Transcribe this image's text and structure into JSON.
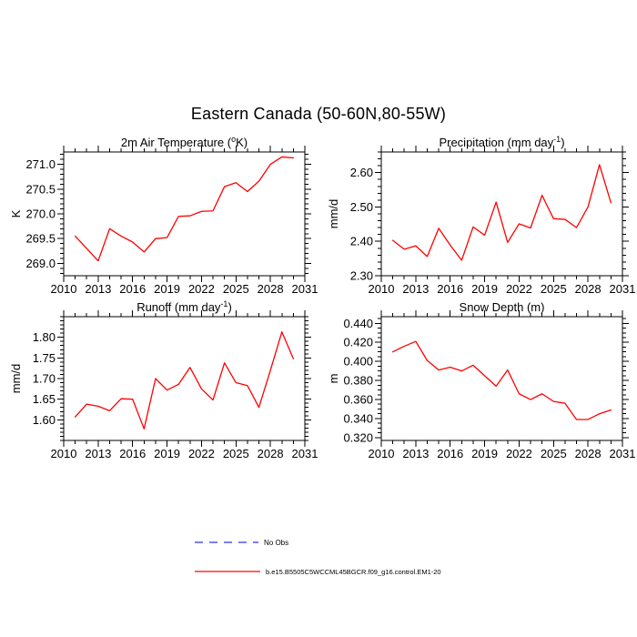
{
  "page": {
    "title": "Eastern Canada (50-60N,80-55W)",
    "background": "#ffffff",
    "text_color": "#000000"
  },
  "legend": {
    "position": "bottom-center",
    "items": [
      {
        "label": "No Obs",
        "color": "#6b6bf0",
        "style": "dashed"
      },
      {
        "label": "b.e15.B5505C5WCCML45BGCR.f09_g16.control.EM1-20",
        "color": "#ff0000",
        "style": "solid"
      }
    ]
  },
  "chart_data": [
    {
      "id": "air-temperature",
      "type": "line",
      "title": "2m Air Temperature (°K)",
      "title_parts": {
        "main": "2m Air Temperature (",
        "sup": "o",
        "end": "K)"
      },
      "ylabel": "K",
      "series_color": "#ff0000",
      "grid": false,
      "x": [
        2011,
        2012,
        2013,
        2014,
        2015,
        2016,
        2017,
        2018,
        2019,
        2020,
        2021,
        2022,
        2023,
        2024,
        2025,
        2026,
        2027,
        2028,
        2029,
        2030
      ],
      "values": [
        269.55,
        269.3,
        269.05,
        269.7,
        269.55,
        269.43,
        269.23,
        269.5,
        269.52,
        269.95,
        269.96,
        270.05,
        270.06,
        270.55,
        270.63,
        270.45,
        270.66,
        271.0,
        271.15,
        271.13
      ],
      "xlim": [
        2010,
        2031
      ],
      "xticks": [
        2010,
        2013,
        2016,
        2019,
        2022,
        2025,
        2028,
        2031
      ],
      "x_minor_step": 1,
      "ylim": [
        268.75,
        271.25
      ],
      "yticks": [
        269.0,
        269.5,
        270.0,
        270.5,
        271.0
      ],
      "ytick_decimals": 1,
      "y_minor_step": 0.1
    },
    {
      "id": "precipitation",
      "type": "line",
      "title": "Precipitation (mm day⁻¹)",
      "title_parts": {
        "main": "Precipitation (mm day",
        "sup": "-1",
        "end": ")"
      },
      "ylabel": "mm/d",
      "series_color": "#ff0000",
      "grid": false,
      "x": [
        2011,
        2012,
        2013,
        2014,
        2015,
        2016,
        2017,
        2018,
        2019,
        2020,
        2021,
        2022,
        2023,
        2024,
        2025,
        2026,
        2027,
        2028,
        2029,
        2030
      ],
      "values": [
        2.403,
        2.377,
        2.387,
        2.356,
        2.438,
        2.389,
        2.345,
        2.442,
        2.418,
        2.514,
        2.397,
        2.451,
        2.439,
        2.534,
        2.466,
        2.464,
        2.44,
        2.5,
        2.623,
        2.512
      ],
      "xlim": [
        2010,
        2031
      ],
      "xticks": [
        2010,
        2013,
        2016,
        2019,
        2022,
        2025,
        2028,
        2031
      ],
      "x_minor_step": 1,
      "ylim": [
        2.3,
        2.66
      ],
      "yticks": [
        2.3,
        2.4,
        2.5,
        2.6
      ],
      "ytick_decimals": 2,
      "y_minor_step": 0.02
    },
    {
      "id": "runoff",
      "type": "line",
      "title": "Runoff (mm day⁻¹)",
      "title_parts": {
        "main": "Runoff (mm day",
        "sup": "-1",
        "end": ")"
      },
      "ylabel": "mm/d",
      "series_color": "#ff0000",
      "grid": false,
      "x": [
        2011,
        2012,
        2013,
        2014,
        2015,
        2016,
        2017,
        2018,
        2019,
        2020,
        2021,
        2022,
        2023,
        2024,
        2025,
        2026,
        2027,
        2028,
        2029,
        2030
      ],
      "values": [
        1.607,
        1.638,
        1.633,
        1.622,
        1.651,
        1.65,
        1.578,
        1.7,
        1.672,
        1.686,
        1.727,
        1.675,
        1.648,
        1.738,
        1.69,
        1.683,
        1.63,
        1.72,
        1.813,
        1.748
      ],
      "xlim": [
        2010,
        2031
      ],
      "xticks": [
        2010,
        2013,
        2016,
        2019,
        2022,
        2025,
        2028,
        2031
      ],
      "x_minor_step": 1,
      "ylim": [
        1.55,
        1.85
      ],
      "yticks": [
        1.6,
        1.65,
        1.7,
        1.75,
        1.8
      ],
      "ytick_decimals": 2,
      "y_minor_step": 0.01
    },
    {
      "id": "snow-depth",
      "type": "line",
      "title": "Snow Depth (m)",
      "title_parts": {
        "main": "Snow Depth (m)",
        "sup": "",
        "end": ""
      },
      "ylabel": "m",
      "series_color": "#ff0000",
      "grid": false,
      "x": [
        2011,
        2012,
        2013,
        2014,
        2015,
        2016,
        2017,
        2018,
        2019,
        2020,
        2021,
        2022,
        2023,
        2024,
        2025,
        2026,
        2027,
        2028,
        2029,
        2030
      ],
      "values": [
        0.41,
        0.416,
        0.421,
        0.401,
        0.391,
        0.394,
        0.39,
        0.396,
        0.385,
        0.374,
        0.391,
        0.366,
        0.36,
        0.366,
        0.358,
        0.356,
        0.339,
        0.339,
        0.345,
        0.349
      ],
      "xlim": [
        2010,
        2031
      ],
      "xticks": [
        2010,
        2013,
        2016,
        2019,
        2022,
        2025,
        2028,
        2031
      ],
      "x_minor_step": 1,
      "ylim": [
        0.317,
        0.447
      ],
      "yticks": [
        0.32,
        0.34,
        0.36,
        0.38,
        0.4,
        0.42,
        0.44
      ],
      "ytick_decimals": 3,
      "y_minor_step": 0.005
    }
  ]
}
